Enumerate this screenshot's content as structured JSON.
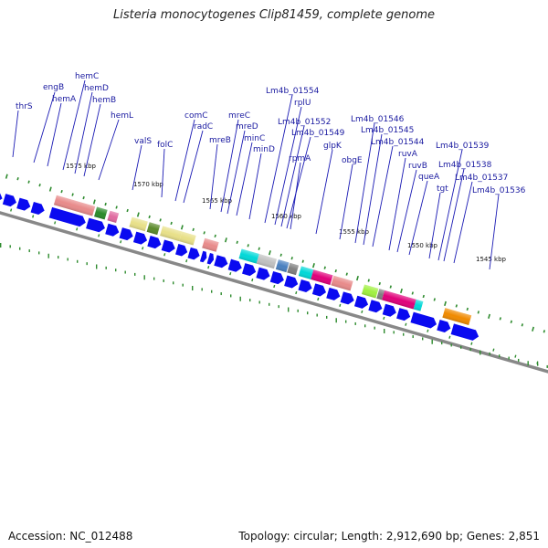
{
  "title": "Listeria monocytogenes Clip81459, complete genome",
  "footer": {
    "accession": "Accession: NC_012488",
    "stats": "Topology: circular; Length: 2,912,690 bp; Genes: 2,851"
  },
  "colors": {
    "arrow": "#0a0af0",
    "leader": "#1a1ab4",
    "label": "#1a1aa0",
    "tick": "#2e8b2e",
    "backbone": "#888888"
  },
  "position_ticks": [
    "1575 kbp",
    "1570 kbp",
    "1565 kbp",
    "1560 kbp",
    "1555 kbp",
    "1550 kbp",
    "1545 kbp"
  ],
  "gene_labels": [
    "thrS",
    "engB",
    "hemA",
    "hemC",
    "hemD",
    "hemB",
    "hemL",
    "valS",
    "folC",
    "comC",
    "radC",
    "mreB",
    "mreC",
    "mreD",
    "minC",
    "minD",
    "Lm4b_01554",
    "rplU",
    "Lm4b_01552",
    "Lm4b_01549",
    "rpmA",
    "glpK",
    "obgE",
    "Lm4b_01546",
    "Lm4b_01545",
    "Lm4b_01544",
    "ruvA",
    "ruvB",
    "queA",
    "tgt",
    "Lm4b_01539",
    "Lm4b_01538",
    "Lm4b_01537",
    "Lm4b_01536"
  ],
  "cog_block_colors": [
    "#e88a8a",
    "#bcbcbc",
    "#e88a8a",
    "#2a8a2a",
    "#e8e088",
    "#e06aa0",
    "#e8e088",
    "#5a8a2a",
    "#e8e088",
    "#e88a8a",
    "#00d8d8",
    "#c0c0c0",
    "#4a80c0",
    "#808080",
    "#00d8d8",
    "#e0007a",
    "#e88a8a",
    "#a0f040",
    "#808080",
    "#e0007a",
    "#00d8d8",
    "#f08a00"
  ]
}
